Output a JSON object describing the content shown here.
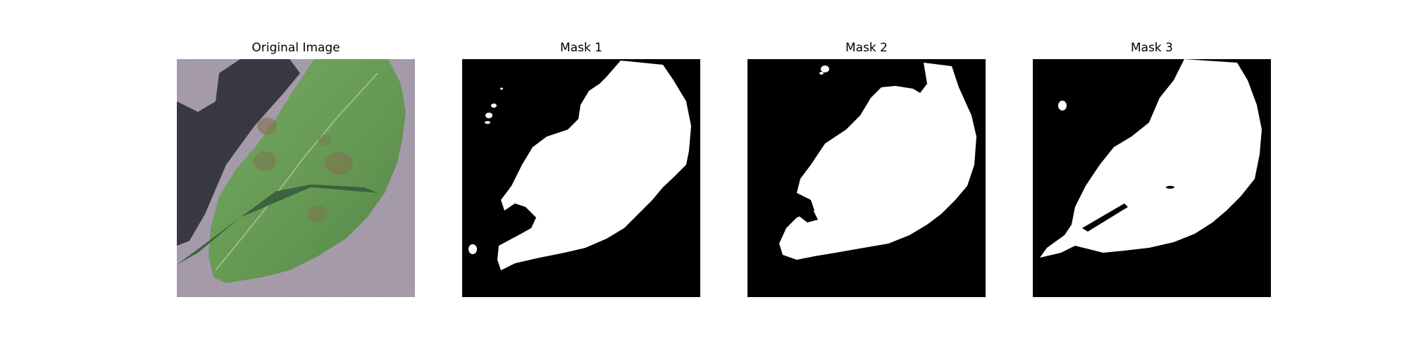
{
  "panels": [
    {
      "title": "Original Image",
      "kind": "photo",
      "subject": "leaf-photo"
    },
    {
      "title": "Mask 1",
      "kind": "mask",
      "subject": "binary-mask"
    },
    {
      "title": "Mask 2",
      "kind": "mask",
      "subject": "binary-mask"
    },
    {
      "title": "Mask 3",
      "kind": "mask",
      "subject": "binary-mask"
    }
  ],
  "colors": {
    "background": "#ffffff",
    "mask_background": "#000000",
    "mask_foreground": "#ffffff",
    "leaf": "#5f9a4c",
    "leaf_dark": "#2f5a32",
    "surface": "#a397a8",
    "shadow": "#2c2b38",
    "lesion": "#7a6a45"
  }
}
